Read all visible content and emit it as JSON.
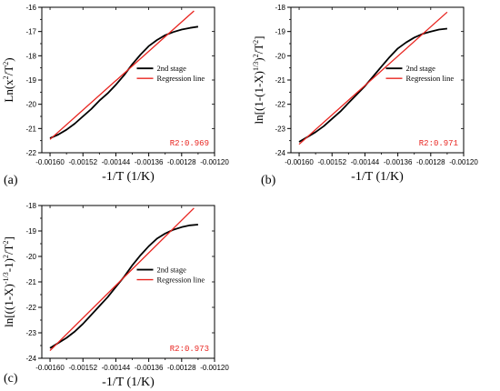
{
  "chart_data": [
    {
      "type": "line",
      "panel_label": "(a)",
      "xlabel": "-1/T (1/K)",
      "ylabel_parts": [
        {
          "t": "Ln(x",
          "sup": false
        },
        {
          "t": "2",
          "sup": true
        },
        {
          "t": "/T",
          "sup": false
        },
        {
          "t": "2",
          "sup": true
        },
        {
          "t": ")",
          "sup": false
        }
      ],
      "xlim": [
        -0.00162,
        -0.0012
      ],
      "ylim": [
        -22,
        -16
      ],
      "xticks": [
        -0.0016,
        -0.00152,
        -0.00144,
        -0.00136,
        -0.00128,
        -0.0012
      ],
      "xtick_labels": [
        "-0.00160",
        "-0.00152",
        "-0.00144",
        "-0.00136",
        "-0.00128",
        "-0.00120"
      ],
      "yticks": [
        -22,
        -21,
        -20,
        -19,
        -18,
        -17,
        -16
      ],
      "ytick_labels": [
        "-22",
        "-21",
        "-20",
        "-19",
        "-18",
        "-17",
        "-16"
      ],
      "legend_position": "center-right",
      "r2_label": "R2:0.969",
      "series": [
        {
          "name": "2nd stage",
          "color": "#000000",
          "x": [
            -0.0016,
            -0.00158,
            -0.00156,
            -0.00154,
            -0.00152,
            -0.0015,
            -0.00148,
            -0.00146,
            -0.00144,
            -0.00142,
            -0.0014,
            -0.00138,
            -0.00136,
            -0.00134,
            -0.00132,
            -0.0013,
            -0.00128,
            -0.00126,
            -0.00124
          ],
          "y": [
            -21.4,
            -21.25,
            -21.05,
            -20.8,
            -20.5,
            -20.2,
            -19.85,
            -19.55,
            -19.2,
            -18.8,
            -18.35,
            -17.95,
            -17.6,
            -17.35,
            -17.15,
            -17.02,
            -16.92,
            -16.85,
            -16.8
          ]
        },
        {
          "name": "Regression line",
          "color": "#e8241f",
          "x": [
            -0.0016,
            -0.00125
          ],
          "y": [
            -21.45,
            -16.15
          ]
        }
      ]
    },
    {
      "type": "line",
      "panel_label": "(b)",
      "xlabel": "-1/T (1/K)",
      "ylabel_parts": [
        {
          "t": "ln[(1-(1-X)",
          "sup": false
        },
        {
          "t": "1/3",
          "sup": true
        },
        {
          "t": ")",
          "sup": false
        },
        {
          "t": "2",
          "sup": true
        },
        {
          "t": "/T",
          "sup": false
        },
        {
          "t": "2",
          "sup": true
        },
        {
          "t": "]",
          "sup": false
        }
      ],
      "xlim": [
        -0.00162,
        -0.0012
      ],
      "ylim": [
        -24,
        -18
      ],
      "xticks": [
        -0.0016,
        -0.00152,
        -0.00144,
        -0.00136,
        -0.00128,
        -0.0012
      ],
      "xtick_labels": [
        "-0.00160",
        "-0.00152",
        "-0.00144",
        "-0.00136",
        "-0.00128",
        "-0.00120"
      ],
      "yticks": [
        -24,
        -23,
        -22,
        -21,
        -20,
        -19,
        -18
      ],
      "ytick_labels": [
        "-24",
        "-23",
        "-22",
        "-21",
        "-20",
        "-19",
        "-18"
      ],
      "legend_position": "center-right",
      "r2_label": "R2:0.971",
      "series": [
        {
          "name": "2nd stage",
          "color": "#000000",
          "x": [
            -0.0016,
            -0.00158,
            -0.00156,
            -0.00154,
            -0.00152,
            -0.0015,
            -0.00148,
            -0.00146,
            -0.00144,
            -0.00142,
            -0.0014,
            -0.00138,
            -0.00136,
            -0.00134,
            -0.00132,
            -0.0013,
            -0.00128,
            -0.00126,
            -0.00124
          ],
          "y": [
            -23.55,
            -23.35,
            -23.15,
            -22.9,
            -22.6,
            -22.3,
            -21.95,
            -21.6,
            -21.25,
            -20.85,
            -20.45,
            -20.05,
            -19.7,
            -19.45,
            -19.25,
            -19.1,
            -19.0,
            -18.92,
            -18.88
          ]
        },
        {
          "name": "Regression line",
          "color": "#e8241f",
          "x": [
            -0.0016,
            -0.00124
          ],
          "y": [
            -23.65,
            -18.2
          ]
        }
      ]
    },
    {
      "type": "line",
      "panel_label": "(c)",
      "xlabel": "-1/T (1/K)",
      "ylabel_parts": [
        {
          "t": "ln[((1-X)",
          "sup": false
        },
        {
          "t": "-1/3",
          "sup": true
        },
        {
          "t": "-1)",
          "sup": false
        },
        {
          "t": "2",
          "sup": true
        },
        {
          "t": "/T",
          "sup": false
        },
        {
          "t": "2",
          "sup": true
        },
        {
          "t": "]",
          "sup": false
        }
      ],
      "xlim": [
        -0.00162,
        -0.0012
      ],
      "ylim": [
        -24,
        -18
      ],
      "xticks": [
        -0.0016,
        -0.00152,
        -0.00144,
        -0.00136,
        -0.00128,
        -0.0012
      ],
      "xtick_labels": [
        "-0.00160",
        "-0.00152",
        "-0.00144",
        "-0.00136",
        "-0.00128",
        "-0.00120"
      ],
      "yticks": [
        -24,
        -23,
        -22,
        -21,
        -20,
        -19,
        -18
      ],
      "ytick_labels": [
        "-24",
        "-23",
        "-22",
        "-21",
        "-20",
        "-19",
        "-18"
      ],
      "legend_position": "center-right",
      "r2_label": "R2:0.973",
      "series": [
        {
          "name": "2nd stage",
          "color": "#000000",
          "x": [
            -0.0016,
            -0.00158,
            -0.00156,
            -0.00154,
            -0.00152,
            -0.0015,
            -0.00148,
            -0.00146,
            -0.00144,
            -0.00142,
            -0.0014,
            -0.00138,
            -0.00136,
            -0.00134,
            -0.00132,
            -0.0013,
            -0.00128,
            -0.00126,
            -0.00124
          ],
          "y": [
            -23.6,
            -23.4,
            -23.2,
            -22.95,
            -22.65,
            -22.3,
            -21.95,
            -21.6,
            -21.2,
            -20.8,
            -20.35,
            -19.95,
            -19.6,
            -19.3,
            -19.1,
            -18.95,
            -18.85,
            -18.78,
            -18.75
          ]
        },
        {
          "name": "Regression line",
          "color": "#e8241f",
          "x": [
            -0.0016,
            -0.00125
          ],
          "y": [
            -23.7,
            -18.1
          ]
        }
      ]
    }
  ]
}
